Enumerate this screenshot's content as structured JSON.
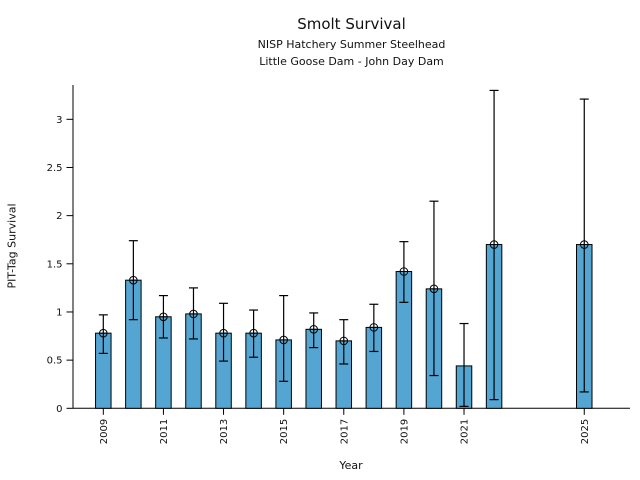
{
  "title": "Smolt Survival",
  "subtitle_line1": "NISP Hatchery Summer Steelhead",
  "subtitle_line2": "Little Goose Dam - John Day Dam",
  "chart_data": {
    "type": "bar",
    "title": "Smolt Survival",
    "subtitle": [
      "NISP Hatchery Summer Steelhead",
      "Little Goose Dam - John Day Dam"
    ],
    "xlabel": "Year",
    "ylabel": "PIT-Tag Survival",
    "grid": false,
    "legend": null,
    "bar_color": "#54a5d1",
    "edge_color": "#000000",
    "xlim": [
      2008.0,
      2026.5
    ],
    "ylim": [
      0,
      3.36
    ],
    "yticks": [
      0,
      0.5,
      1,
      1.5,
      2,
      2.5,
      3
    ],
    "ytick_labels": [
      "0",
      "0.5",
      "1",
      "1.5",
      "2",
      "2.5",
      "3"
    ],
    "xtick_years": [
      2009,
      2011,
      2013,
      2015,
      2017,
      2019,
      2021,
      2025
    ],
    "xtick_labels": [
      "2009",
      "2011",
      "2013",
      "2015",
      "2017",
      "2019",
      "2021",
      "2025"
    ],
    "points": [
      {
        "year": 2009,
        "value": 0.78,
        "lo": 0.57,
        "hi": 0.97,
        "marker": true
      },
      {
        "year": 2010,
        "value": 1.33,
        "lo": 0.92,
        "hi": 1.74,
        "marker": true
      },
      {
        "year": 2011,
        "value": 0.95,
        "lo": 0.73,
        "hi": 1.17,
        "marker": true
      },
      {
        "year": 2012,
        "value": 0.98,
        "lo": 0.72,
        "hi": 1.25,
        "marker": true
      },
      {
        "year": 2013,
        "value": 0.78,
        "lo": 0.49,
        "hi": 1.09,
        "marker": true
      },
      {
        "year": 2014,
        "value": 0.78,
        "lo": 0.53,
        "hi": 1.02,
        "marker": true
      },
      {
        "year": 2015,
        "value": 0.71,
        "lo": 0.28,
        "hi": 1.17,
        "marker": true
      },
      {
        "year": 2016,
        "value": 0.82,
        "lo": 0.63,
        "hi": 0.99,
        "marker": true
      },
      {
        "year": 2017,
        "value": 0.7,
        "lo": 0.46,
        "hi": 0.92,
        "marker": true
      },
      {
        "year": 2018,
        "value": 0.84,
        "lo": 0.59,
        "hi": 1.08,
        "marker": true
      },
      {
        "year": 2019,
        "value": 1.42,
        "lo": 1.1,
        "hi": 1.73,
        "marker": true
      },
      {
        "year": 2020,
        "value": 1.24,
        "lo": 0.34,
        "hi": 2.15,
        "marker": true
      },
      {
        "year": 2021,
        "value": 0.44,
        "lo": 0.02,
        "hi": 0.88,
        "marker": false
      },
      {
        "year": 2022,
        "value": 1.7,
        "lo": 0.09,
        "hi": 3.3,
        "marker": true
      },
      {
        "year": 2025,
        "value": 1.7,
        "lo": 0.17,
        "hi": 3.21,
        "marker": true
      }
    ]
  }
}
